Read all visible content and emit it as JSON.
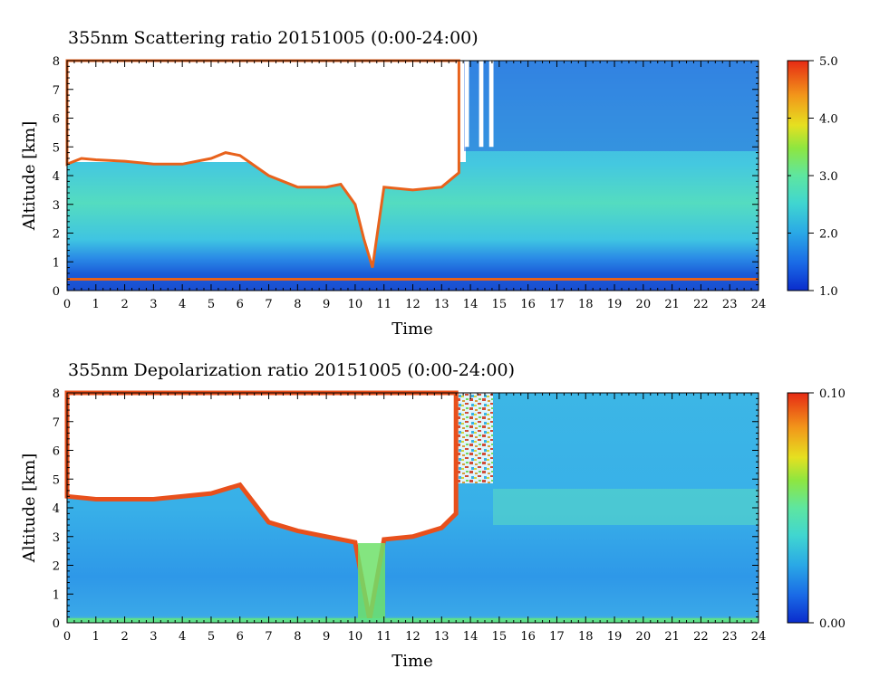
{
  "chart_data": [
    {
      "type": "heatmap",
      "title": "355nm Scattering ratio  20151005 (0:00-24:00)",
      "xlabel": "Time",
      "ylabel": "Altitude [km]",
      "xlim": [
        0,
        24
      ],
      "ylim": [
        0,
        8
      ],
      "x_ticks": [
        "0",
        "1",
        "2",
        "3",
        "4",
        "5",
        "6",
        "7",
        "8",
        "9",
        "10",
        "11",
        "12",
        "13",
        "14",
        "15",
        "16",
        "17",
        "18",
        "19",
        "20",
        "21",
        "22",
        "23",
        "24"
      ],
      "y_ticks": [
        "0",
        "1",
        "2",
        "3",
        "4",
        "5",
        "6",
        "7",
        "8"
      ],
      "colorbar": {
        "min": 1.0,
        "max": 5.0,
        "tick_labels": [
          "1.0",
          "2.0",
          "3.0",
          "4.0",
          "5.0"
        ],
        "tick_values": [
          1.0,
          2.0,
          3.0,
          4.0,
          5.0
        ]
      },
      "cloud_base_km": [
        [
          0,
          4.4
        ],
        [
          0.5,
          4.6
        ],
        [
          1,
          4.55
        ],
        [
          2,
          4.5
        ],
        [
          3,
          4.4
        ],
        [
          4,
          4.4
        ],
        [
          5,
          4.6
        ],
        [
          5.5,
          4.8
        ],
        [
          6,
          4.7
        ],
        [
          7,
          4.0
        ],
        [
          8,
          3.6
        ],
        [
          9,
          3.6
        ],
        [
          9.5,
          3.7
        ],
        [
          10,
          3.0
        ],
        [
          10.3,
          1.8
        ],
        [
          10.6,
          0.8
        ],
        [
          11,
          3.6
        ],
        [
          12,
          3.5
        ],
        [
          13,
          3.6
        ],
        [
          13.6,
          4.1
        ]
      ],
      "no_data_columns_h": [
        [
          13.8,
          13.95
        ],
        [
          14.3,
          14.45
        ],
        [
          14.65,
          14.8
        ]
      ],
      "colors": [
        "#0033cc",
        "#1a7ae6",
        "#33b3e6",
        "#4dd9cc",
        "#66e699",
        "#b3e633",
        "#f2d91a",
        "#f28c1a",
        "#e63319"
      ]
    },
    {
      "type": "heatmap",
      "title": "355nm Depolarization ratio  20151005 (0:00-24:00)",
      "xlabel": "Time",
      "ylabel": "Altitude [km]",
      "xlim": [
        0,
        24
      ],
      "ylim": [
        0,
        8
      ],
      "x_ticks": [
        "0",
        "1",
        "2",
        "3",
        "4",
        "5",
        "6",
        "7",
        "8",
        "9",
        "10",
        "11",
        "12",
        "13",
        "14",
        "15",
        "16",
        "17",
        "18",
        "19",
        "20",
        "21",
        "22",
        "23",
        "24"
      ],
      "y_ticks": [
        "0",
        "1",
        "2",
        "3",
        "4",
        "5",
        "6",
        "7",
        "8"
      ],
      "colorbar": {
        "min": 0.0,
        "max": 0.1,
        "tick_labels": [
          "0.00",
          "0.10"
        ],
        "tick_values": [
          0.0,
          0.1
        ]
      },
      "cloud_base_km": [
        [
          0,
          4.4
        ],
        [
          1,
          4.3
        ],
        [
          3,
          4.3
        ],
        [
          5,
          4.5
        ],
        [
          6,
          4.8
        ],
        [
          7,
          3.5
        ],
        [
          8,
          3.2
        ],
        [
          9,
          3.0
        ],
        [
          10,
          2.8
        ],
        [
          10.5,
          0.1
        ],
        [
          11,
          2.9
        ],
        [
          12,
          3.0
        ],
        [
          13,
          3.3
        ],
        [
          13.5,
          3.8
        ]
      ],
      "colors": [
        "#0033cc",
        "#1a7ae6",
        "#33b3e6",
        "#4dd9cc",
        "#66e699",
        "#b3e633",
        "#f2d91a",
        "#f28c1a",
        "#e63319"
      ]
    }
  ]
}
